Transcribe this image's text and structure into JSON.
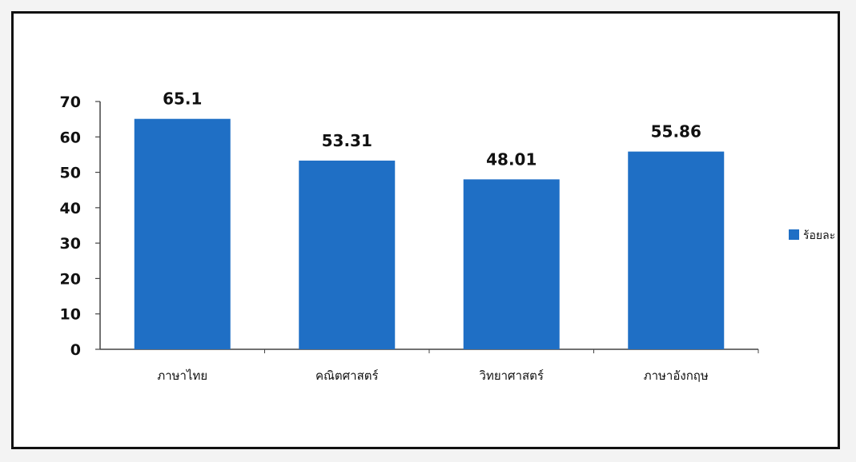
{
  "chart_data": {
    "type": "bar",
    "title": "",
    "xlabel": "",
    "ylabel": "",
    "categories": [
      "ภาษาไทย",
      "คณิตศาสตร์",
      "วิทยาศาสตร์",
      "ภาษาอังกฤษ"
    ],
    "series": [
      {
        "name": "ร้อยละ",
        "values": [
          65.1,
          53.31,
          48.01,
          55.86
        ],
        "color": "#1f6fc5"
      }
    ],
    "data_labels": [
      "65.1",
      "53.31",
      "48.01",
      "55.86"
    ],
    "ylim": [
      0,
      70
    ],
    "yticks": [
      "0",
      "10",
      "20",
      "30",
      "40",
      "50",
      "60",
      "70"
    ],
    "grid": false,
    "legend_position": "right"
  }
}
